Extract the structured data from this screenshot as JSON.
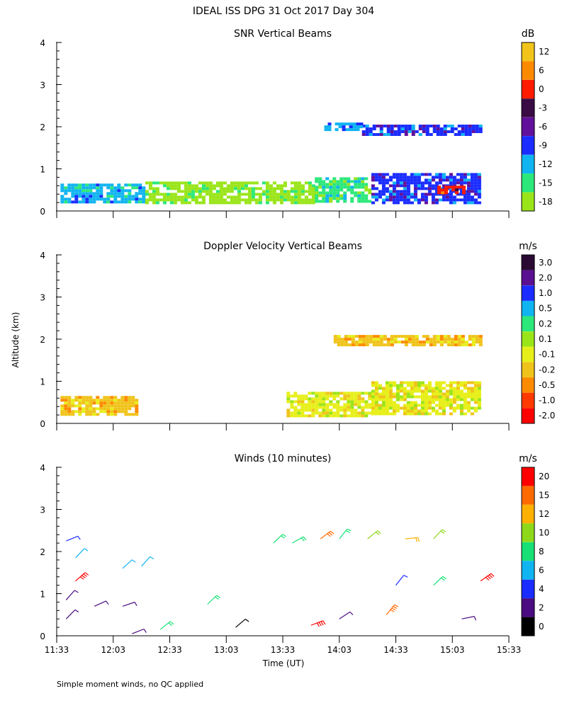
{
  "figure": {
    "title": "IDEAL ISS DPG  31 Oct 2017 Day 304",
    "ylabel": "Altitude (km)",
    "xlabel": "Time (UT)",
    "footnote": "Simple moment winds, no QC applied",
    "x_ticks": [
      "11:33",
      "12:03",
      "12:33",
      "13:03",
      "13:33",
      "14:03",
      "14:33",
      "15:03",
      "15:33"
    ],
    "y_ticks": [
      "0",
      "1",
      "2",
      "3",
      "4"
    ]
  },
  "chart_data": [
    {
      "type": "heatmap",
      "title": "SNR Vertical Beams",
      "xlim": [
        "11:33",
        "15:33"
      ],
      "ylim": [
        0,
        4
      ],
      "colorbar": {
        "unit": "dB",
        "labels": [
          "12",
          "6",
          "0",
          "-3",
          "-6",
          "-9",
          "-12",
          "-15",
          "-18"
        ],
        "colors": [
          "#f2c41b",
          "#ff8a00",
          "#ff1a00",
          "#3a0b44",
          "#62109c",
          "#1a2cff",
          "#10b4f0",
          "#2ce87a",
          "#9ae51a"
        ]
      },
      "data_extent": {
        "x_range": [
          "11:35",
          "15:18"
        ],
        "y_range_km": [
          0.2,
          2.3
        ]
      },
      "regions": [
        {
          "t0": "11:35",
          "t1": "12:20",
          "z0": 0.2,
          "z1": 0.65,
          "level": "-12"
        },
        {
          "t0": "12:20",
          "t1": "13:50",
          "z0": 0.2,
          "z1": 0.7,
          "level": "-18"
        },
        {
          "t0": "13:50",
          "t1": "14:20",
          "z0": 0.2,
          "z1": 0.8,
          "level": "-15"
        },
        {
          "t0": "14:20",
          "t1": "15:18",
          "z0": 0.2,
          "z1": 0.9,
          "level": "-9"
        },
        {
          "t0": "14:55",
          "t1": "15:10",
          "z0": 0.45,
          "z1": 0.6,
          "level": "0"
        },
        {
          "t0": "14:15",
          "t1": "15:18",
          "z0": 1.8,
          "z1": 2.05,
          "level": "-9"
        },
        {
          "t0": "13:55",
          "t1": "14:15",
          "z0": 1.9,
          "z1": 2.1,
          "level": "-12"
        }
      ]
    },
    {
      "type": "heatmap",
      "title": "Doppler Velocity Vertical Beams",
      "xlim": [
        "11:33",
        "15:33"
      ],
      "ylim": [
        0,
        4
      ],
      "colorbar": {
        "unit": "m/s",
        "labels": [
          "3.0",
          "2.0",
          "1.0",
          "0.5",
          "0.2",
          "0.1",
          "-0.1",
          "-0.2",
          "-0.5",
          "-1.0",
          "-2.0"
        ],
        "colors": [
          "#2a0a33",
          "#5a1090",
          "#1a2cff",
          "#10b4f0",
          "#2ce87a",
          "#9ae51a",
          "#e7ef1a",
          "#f0c31a",
          "#ff8a00",
          "#ff3a00",
          "#ff0000"
        ]
      },
      "regions": [
        {
          "t0": "11:35",
          "t1": "12:15",
          "z0": 0.2,
          "z1": 0.65,
          "level": "-0.2"
        },
        {
          "t0": "13:35",
          "t1": "14:20",
          "z0": 0.2,
          "z1": 0.75,
          "level": "-0.1"
        },
        {
          "t0": "14:20",
          "t1": "15:18",
          "z0": 0.2,
          "z1": 1.0,
          "level": "-0.1"
        },
        {
          "t0": "14:00",
          "t1": "15:18",
          "z0": 1.85,
          "z1": 2.1,
          "level": "-0.2"
        }
      ]
    },
    {
      "type": "scatter",
      "title": "Winds (10 minutes)",
      "xlim": [
        "11:33",
        "15:33"
      ],
      "ylim": [
        0,
        4
      ],
      "colorbar": {
        "unit": "m/s",
        "labels": [
          "20",
          "15",
          "12",
          "10",
          "8",
          "6",
          "4",
          "2",
          "0"
        ],
        "colors": [
          "#ff0000",
          "#ff6a00",
          "#ffb000",
          "#8ed81a",
          "#17e074",
          "#10b4f0",
          "#1a2cff",
          "#4a0c80",
          "#000000"
        ]
      },
      "barbs": [
        {
          "t": "11:38",
          "z": 2.25,
          "speed": 5
        },
        {
          "t": "11:43",
          "z": 1.85,
          "speed": 7
        },
        {
          "t": "11:43",
          "z": 1.3,
          "speed": 20
        },
        {
          "t": "11:38",
          "z": 0.85,
          "speed": 3
        },
        {
          "t": "11:38",
          "z": 0.4,
          "speed": 3
        },
        {
          "t": "11:53",
          "z": 0.7,
          "speed": 3
        },
        {
          "t": "12:08",
          "z": 1.6,
          "speed": 7
        },
        {
          "t": "12:18",
          "z": 1.65,
          "speed": 7
        },
        {
          "t": "12:08",
          "z": 0.7,
          "speed": 3
        },
        {
          "t": "12:13",
          "z": 0.05,
          "speed": 3
        },
        {
          "t": "12:28",
          "z": 0.15,
          "speed": 9
        },
        {
          "t": "12:53",
          "z": 0.75,
          "speed": 8
        },
        {
          "t": "13:08",
          "z": 0.2,
          "speed": 1
        },
        {
          "t": "13:28",
          "z": 2.2,
          "speed": 9
        },
        {
          "t": "13:38",
          "z": 2.2,
          "speed": 9
        },
        {
          "t": "13:53",
          "z": 2.3,
          "speed": 15
        },
        {
          "t": "14:03",
          "z": 2.3,
          "speed": 8
        },
        {
          "t": "14:18",
          "z": 2.3,
          "speed": 10
        },
        {
          "t": "14:38",
          "z": 2.3,
          "speed": 12
        },
        {
          "t": "14:53",
          "z": 2.3,
          "speed": 10
        },
        {
          "t": "14:33",
          "z": 1.2,
          "speed": 4
        },
        {
          "t": "14:53",
          "z": 1.2,
          "speed": 8
        },
        {
          "t": "15:18",
          "z": 1.3,
          "speed": 20
        },
        {
          "t": "13:48",
          "z": 0.25,
          "speed": 20
        },
        {
          "t": "14:03",
          "z": 0.4,
          "speed": 3
        },
        {
          "t": "14:28",
          "z": 0.5,
          "speed": 18
        },
        {
          "t": "15:08",
          "z": 0.4,
          "speed": 2
        }
      ]
    }
  ]
}
